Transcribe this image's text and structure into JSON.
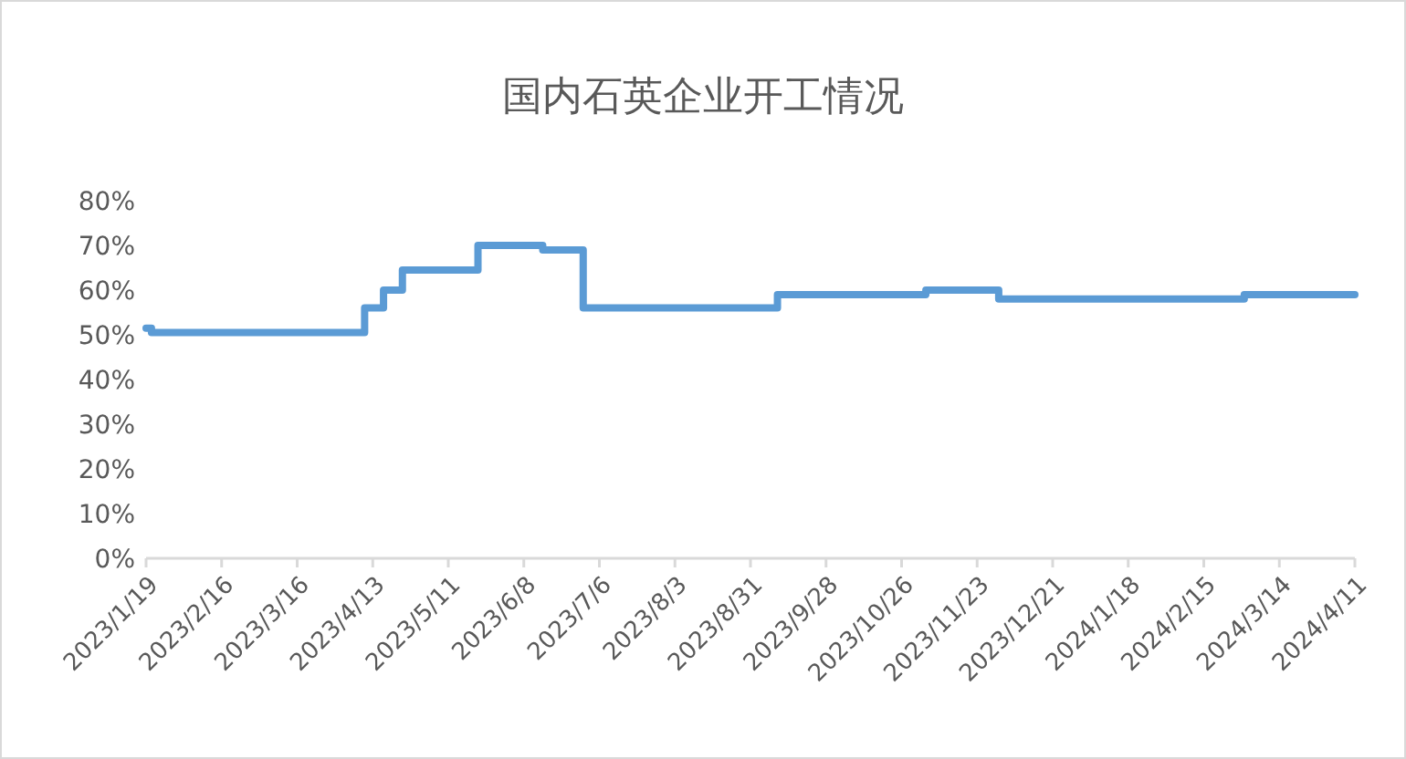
{
  "chart_data": {
    "type": "step",
    "title": "国内石英企业开工情况",
    "x": [
      "2023-01-19",
      "2023-01-21",
      "2023-04-10",
      "2023-04-17",
      "2023-04-24",
      "2023-05-22",
      "2023-06-15",
      "2023-06-30",
      "2023-09-10",
      "2023-11-04",
      "2023-12-01",
      "2024-03-01",
      "2024-04-11"
    ],
    "series": [
      {
        "color": "#5b9bd5",
        "values": [
          51.5,
          50.5,
          56,
          60,
          64.5,
          70,
          69,
          56,
          59,
          60,
          58,
          59,
          59
        ]
      }
    ],
    "xlim": [
      "2023-01-19",
      "2024-04-11"
    ],
    "xticks": [
      {
        "value": "2023-01-19",
        "label": "2023/1/19"
      },
      {
        "value": "2023-02-16",
        "label": "2023/2/16"
      },
      {
        "value": "2023-03-16",
        "label": "2023/3/16"
      },
      {
        "value": "2023-04-13",
        "label": "2023/4/13"
      },
      {
        "value": "2023-05-11",
        "label": "2023/5/11"
      },
      {
        "value": "2023-06-08",
        "label": "2023/6/8"
      },
      {
        "value": "2023-07-06",
        "label": "2023/7/6"
      },
      {
        "value": "2023-08-03",
        "label": "2023/8/3"
      },
      {
        "value": "2023-08-31",
        "label": "2023/8/31"
      },
      {
        "value": "2023-09-28",
        "label": "2023/9/28"
      },
      {
        "value": "2023-10-26",
        "label": "2023/10/26"
      },
      {
        "value": "2023-11-23",
        "label": "2023/11/23"
      },
      {
        "value": "2023-12-21",
        "label": "2023/12/21"
      },
      {
        "value": "2024-01-18",
        "label": "2024/1/18"
      },
      {
        "value": "2024-02-15",
        "label": "2024/2/15"
      },
      {
        "value": "2024-03-14",
        "label": "2024/3/14"
      },
      {
        "value": "2024-04-11",
        "label": "2024/4/11"
      }
    ],
    "ylim": [
      0,
      80
    ],
    "yticks": [
      {
        "value": 0,
        "label": "0%"
      },
      {
        "value": 10,
        "label": "10%"
      },
      {
        "value": 20,
        "label": "20%"
      },
      {
        "value": 30,
        "label": "30%"
      },
      {
        "value": 40,
        "label": "40%"
      },
      {
        "value": 50,
        "label": "50%"
      },
      {
        "value": 60,
        "label": "60%"
      },
      {
        "value": 70,
        "label": "70%"
      },
      {
        "value": 80,
        "label": "80%"
      }
    ]
  }
}
